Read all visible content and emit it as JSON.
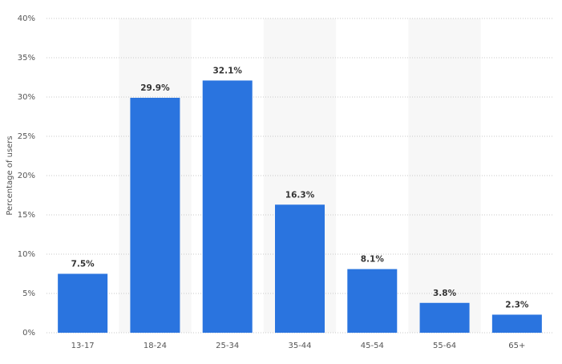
{
  "chart_data": {
    "type": "bar",
    "y_label": "Percentage of users",
    "categories": [
      "13-17",
      "18-24",
      "25-34",
      "35-44",
      "45-54",
      "55-64",
      "65+"
    ],
    "values": [
      7.5,
      29.9,
      32.1,
      16.3,
      8.1,
      3.8,
      2.3
    ],
    "value_labels": [
      "7.5%",
      "29.9%",
      "32.1%",
      "16.3%",
      "8.1%",
      "3.8%",
      "2.3%"
    ],
    "color": "#2a74df",
    "ylim": [
      0,
      40
    ],
    "yticks": [
      {
        "value": 0,
        "label": "0%"
      },
      {
        "value": 5,
        "label": "5%"
      },
      {
        "value": 10,
        "label": "10%"
      },
      {
        "value": 15,
        "label": "15%"
      },
      {
        "value": 20,
        "label": "20%"
      },
      {
        "value": 25,
        "label": "25%"
      },
      {
        "value": 30,
        "label": "30%"
      },
      {
        "value": 35,
        "label": "35%"
      },
      {
        "value": 40,
        "label": "40%"
      }
    ],
    "grid": true
  }
}
